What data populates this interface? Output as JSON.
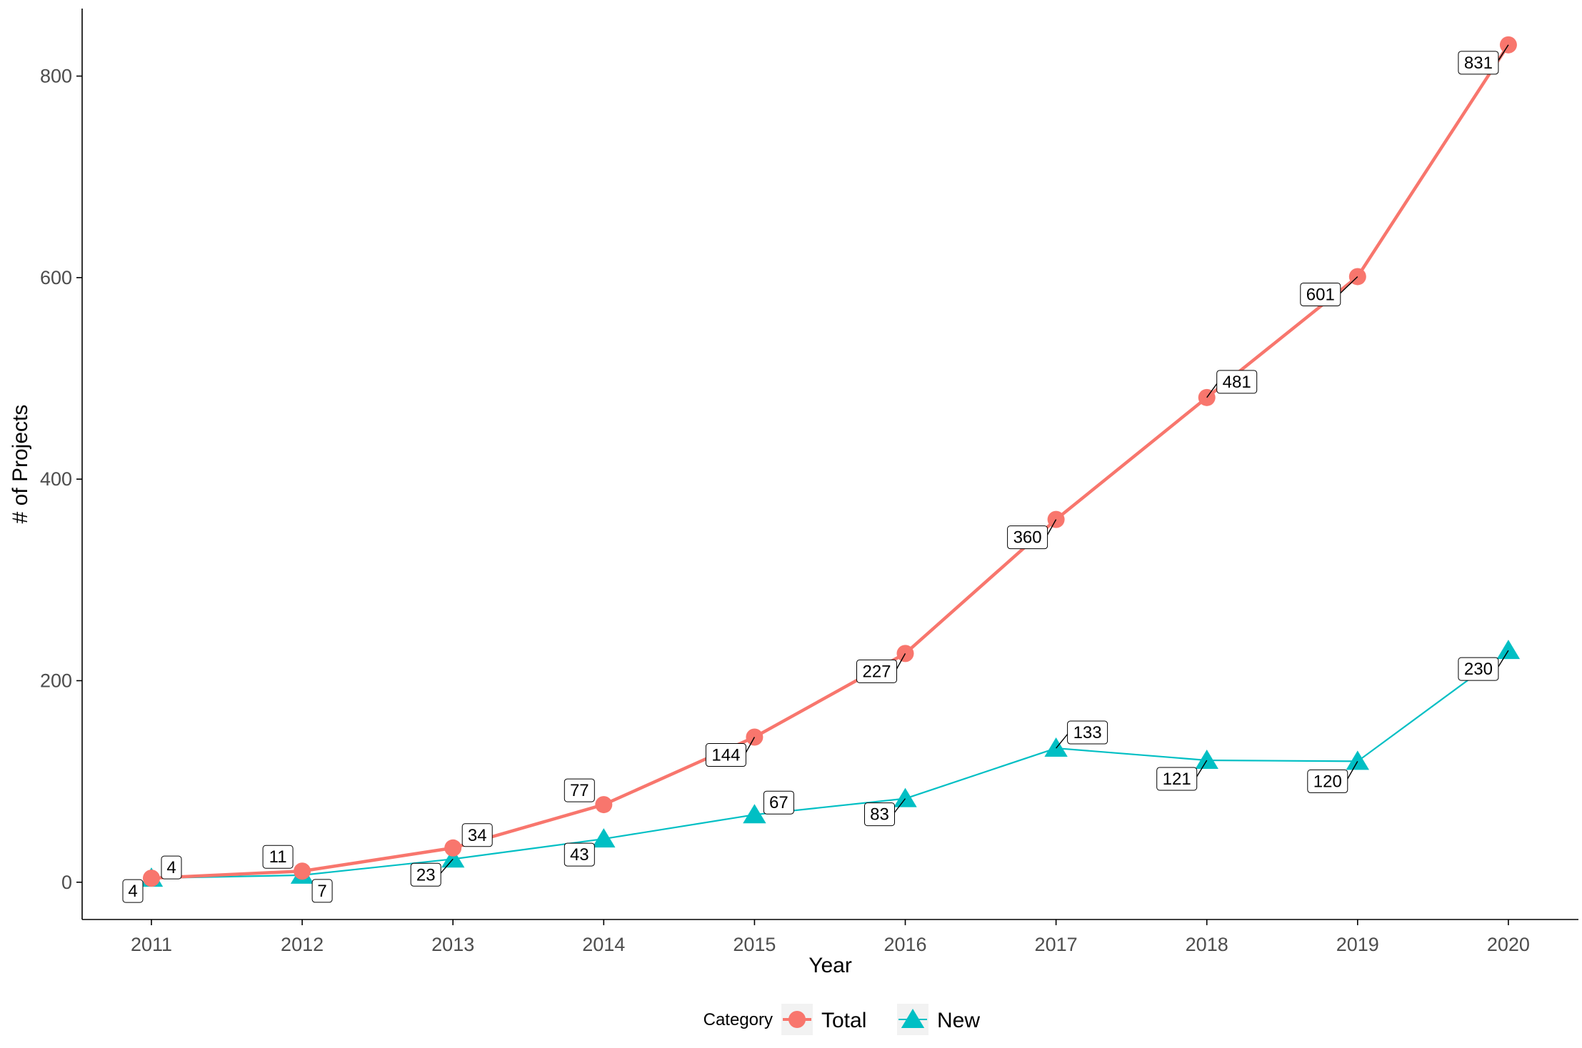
{
  "chart_data": {
    "type": "line",
    "title": "",
    "xlabel": "Year",
    "ylabel": "# of Projects",
    "categories": [
      "2011",
      "2012",
      "2013",
      "2014",
      "2015",
      "2016",
      "2017",
      "2018",
      "2019",
      "2020"
    ],
    "ylim": [
      -37,
      867
    ],
    "yticks": [
      0,
      200,
      400,
      600,
      800
    ],
    "grid": false,
    "legend": {
      "title": "Category",
      "position": "bottom",
      "entries": [
        "Total",
        "New"
      ]
    },
    "series": [
      {
        "name": "Total",
        "color": "#f8766d",
        "marker": "circle",
        "values": [
          4,
          11,
          34,
          77,
          144,
          227,
          360,
          481,
          601,
          831
        ],
        "labels": [
          "4",
          "11",
          "34",
          "77",
          "144",
          "227",
          "360",
          "481",
          "601",
          "831"
        ]
      },
      {
        "name": "New",
        "color": "#00bfc4",
        "marker": "triangle",
        "values": [
          4,
          7,
          23,
          43,
          67,
          83,
          133,
          121,
          120,
          230
        ],
        "labels": [
          "4",
          "7",
          "23",
          "43",
          "67",
          "83",
          "133",
          "121",
          "120",
          "230"
        ]
      }
    ]
  }
}
